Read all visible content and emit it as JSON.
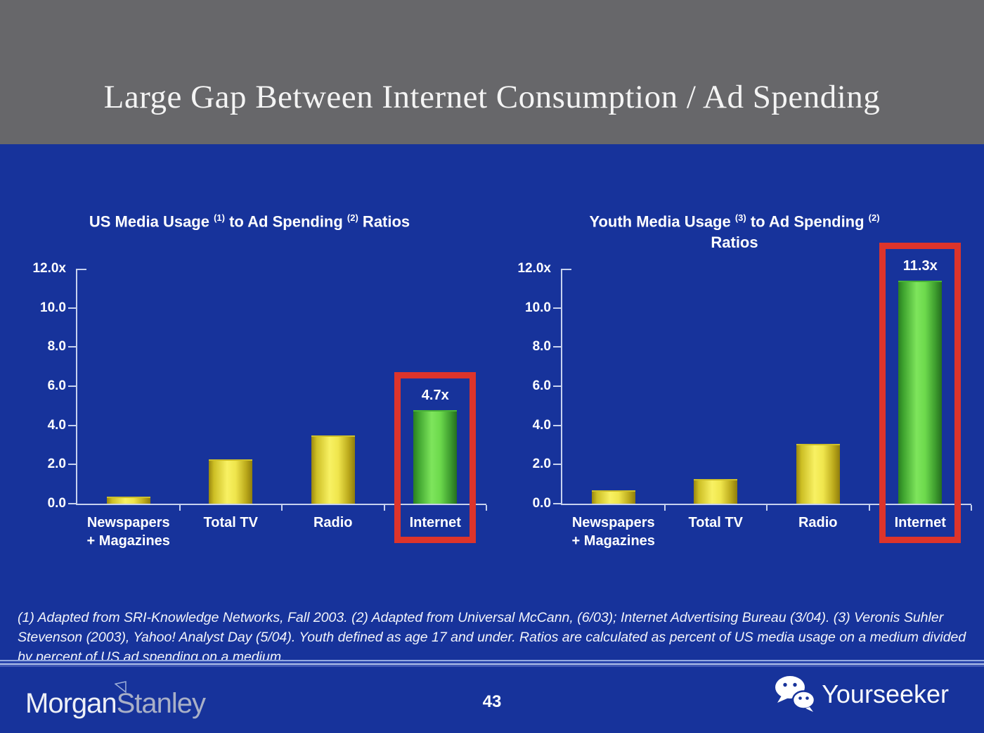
{
  "slide": {
    "title": "Large Gap Between Internet Consumption / Ad Spending",
    "page_number": "43",
    "footnote": "(1) Adapted from SRI-Knowledge Networks, Fall 2003.  (2) Adapted from Universal McCann, (6/03); Internet Advertising Bureau (3/04). (3) Veronis Suhler Stevenson (2003), Yahoo! Analyst Day (5/04).  Youth defined as age 17 and under.  Ratios are calculated as percent of US media usage on a medium divided by percent of US ad spending on a medium."
  },
  "footer": {
    "morgan_stanley": {
      "word1": "Morgan",
      "word2": "Stanley",
      "icon": "morgan-stanley-triangle-icon"
    },
    "yourseeker": {
      "label": "Yourseeker",
      "icon": "wechat-icon"
    }
  },
  "colors": {
    "background_blue": "#17339b",
    "header_gray": "#67676a",
    "axis_line": "#c7d2ee",
    "highlight_red": "#dd342b",
    "bar_yellow_edge": "#9a870f",
    "bar_yellow_center": "#f8f163",
    "bar_green_edge": "#2a7f22",
    "bar_green_center": "#7ee55c",
    "stanley_gray": "#a9b0c7"
  },
  "chart_data": [
    {
      "type": "bar",
      "title": "US Media Usage (1) to Ad Spending (2) Ratios",
      "title_segments": [
        {
          "text": "US Media Usage "
        },
        {
          "text": "(1)",
          "sup": true
        },
        {
          "text": " to Ad Spending "
        },
        {
          "text": "(2)",
          "sup": true
        },
        {
          "text": " Ratios"
        }
      ],
      "categories": [
        [
          "Newspapers",
          "+ Magazines"
        ],
        [
          "Total TV"
        ],
        [
          "Radio"
        ],
        [
          "Internet"
        ]
      ],
      "values": [
        0.3,
        2.2,
        3.4,
        4.7
      ],
      "bar_styles": [
        "yellow",
        "yellow",
        "yellow",
        "green"
      ],
      "data_labels": [
        null,
        null,
        null,
        "4.7x"
      ],
      "highlight_index": 3,
      "xlabel": "",
      "ylabel": "",
      "ylim": [
        0,
        12
      ],
      "ytick_values": [
        12,
        10,
        8,
        6,
        4,
        2,
        0
      ],
      "ytick_labels": [
        "12.0x",
        "10.0",
        "8.0",
        "6.0",
        "4.0",
        "2.0",
        "0.0"
      ],
      "grid": false,
      "legend": "none"
    },
    {
      "type": "bar",
      "title": "Youth Media Usage (3) to Ad Spending (2) Ratios",
      "title_segments": [
        {
          "text": "Youth Media Usage "
        },
        {
          "text": "(3)",
          "sup": true
        },
        {
          "text": " to Ad Spending "
        },
        {
          "text": "(2)",
          "sup": true
        },
        {
          "break": true
        },
        {
          "text": "Ratios"
        }
      ],
      "categories": [
        [
          "Newspapers",
          "+ Magazines"
        ],
        [
          "Total TV"
        ],
        [
          "Radio"
        ],
        [
          "Internet"
        ]
      ],
      "values": [
        0.6,
        1.2,
        3.0,
        11.3
      ],
      "bar_styles": [
        "yellow",
        "yellow",
        "yellow",
        "green"
      ],
      "data_labels": [
        null,
        null,
        null,
        "11.3x"
      ],
      "highlight_index": 3,
      "xlabel": "",
      "ylabel": "",
      "ylim": [
        0,
        12
      ],
      "ytick_values": [
        12,
        10,
        8,
        6,
        4,
        2,
        0
      ],
      "ytick_labels": [
        "12.0x",
        "10.0",
        "8.0",
        "6.0",
        "4.0",
        "2.0",
        "0.0"
      ],
      "grid": false,
      "legend": "none"
    }
  ]
}
